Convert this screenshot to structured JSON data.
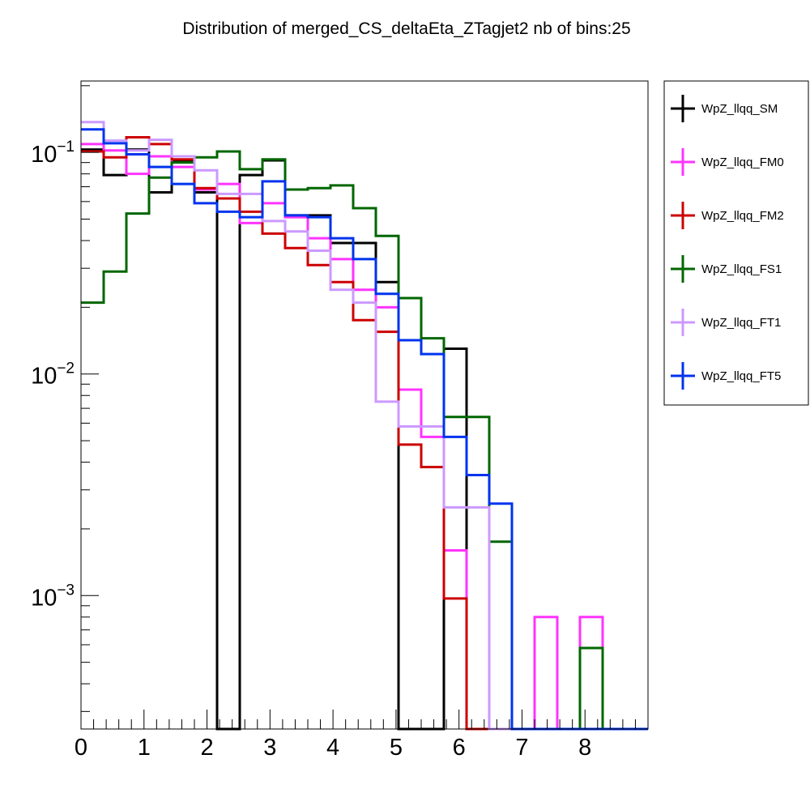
{
  "chart_data": {
    "type": "histogram",
    "title": "Distribution of merged_CS_deltaEta_ZTagjet2 nb of bins:25",
    "xlabel": "",
    "ylabel": "",
    "xlim": [
      0,
      9
    ],
    "ylim": [
      0.00025,
      0.21
    ],
    "yscale": "log",
    "nbins": 25,
    "bin_edges": [
      0,
      0.36,
      0.72,
      1.08,
      1.44,
      1.8,
      2.16,
      2.52,
      2.88,
      3.24,
      3.6,
      3.96,
      4.32,
      4.68,
      5.04,
      5.4,
      5.76,
      6.12,
      6.48,
      6.84,
      7.2,
      7.56,
      7.92,
      8.28,
      8.64,
      9.0
    ],
    "x_ticks": [
      {
        "value": 0,
        "label": "0"
      },
      {
        "value": 1,
        "label": "1"
      },
      {
        "value": 2,
        "label": "2"
      },
      {
        "value": 3,
        "label": "3"
      },
      {
        "value": 4,
        "label": "4"
      },
      {
        "value": 5,
        "label": "5"
      },
      {
        "value": 6,
        "label": "6"
      },
      {
        "value": 7,
        "label": "7"
      },
      {
        "value": 8,
        "label": "8"
      }
    ],
    "y_ticks": [
      {
        "value": 0.1,
        "base": "10",
        "exp": "−1"
      },
      {
        "value": 0.01,
        "base": "10",
        "exp": "−2"
      },
      {
        "value": 0.001,
        "base": "10",
        "exp": "−3"
      }
    ],
    "legend_position": "right",
    "series": [
      {
        "name": "WpZ_llqq_SM",
        "color": "#000000",
        "values": [
          0.103,
          0.079,
          0.103,
          0.066,
          0.092,
          0.066,
          0,
          0.079,
          0.092,
          0.052,
          0.052,
          0.039,
          0.039,
          0.026,
          0,
          0,
          0.013,
          0,
          0,
          0,
          0,
          0,
          0,
          0,
          0
        ]
      },
      {
        "name": "WpZ_llqq_FM0",
        "color": "#ff33ff",
        "values": [
          0.109,
          0.102,
          0.08,
          0.096,
          0.086,
          0.068,
          0.072,
          0.048,
          0.059,
          0.051,
          0.041,
          0.033,
          0.024,
          0.02,
          0.0085,
          0.0052,
          0.0016,
          0,
          0,
          0,
          0.0008,
          0,
          0.0008,
          0,
          0
        ]
      },
      {
        "name": "WpZ_llqq_FM2",
        "color": "#cc0000",
        "values": [
          0.101,
          0.095,
          0.117,
          0.109,
          0.093,
          0.069,
          0.062,
          0.054,
          0.043,
          0.037,
          0.031,
          0.026,
          0.0175,
          0.0155,
          0.0048,
          0.0038,
          0.00097,
          0,
          0,
          0,
          0,
          0,
          0,
          0,
          0
        ]
      },
      {
        "name": "WpZ_llqq_FS1",
        "color": "#006600",
        "values": [
          0.021,
          0.029,
          0.053,
          0.077,
          0.09,
          0.095,
          0.101,
          0.084,
          0.093,
          0.068,
          0.069,
          0.071,
          0.056,
          0.042,
          0.022,
          0.0145,
          0.0064,
          0.0064,
          0.00175,
          0,
          0,
          0,
          0.00058,
          0,
          0
        ]
      },
      {
        "name": "WpZ_llqq_FT1",
        "color": "#cc99ff",
        "values": [
          0.137,
          0.113,
          0.102,
          0.114,
          0.096,
          0.083,
          0.065,
          0.065,
          0.049,
          0.044,
          0.036,
          0.024,
          0.021,
          0.0075,
          0.0058,
          0.0058,
          0.0025,
          0.0025,
          0,
          0,
          0,
          0,
          0,
          0,
          0
        ]
      },
      {
        "name": "WpZ_llqq_FT5",
        "color": "#0033ee",
        "values": [
          0.127,
          0.11,
          0.098,
          0.086,
          0.072,
          0.059,
          0.054,
          0.051,
          0.074,
          0.052,
          0.051,
          0.041,
          0.033,
          0.023,
          0.0142,
          0.0123,
          0.0052,
          0.0035,
          0.0026,
          0,
          0,
          0,
          0,
          0,
          0
        ]
      }
    ]
  }
}
